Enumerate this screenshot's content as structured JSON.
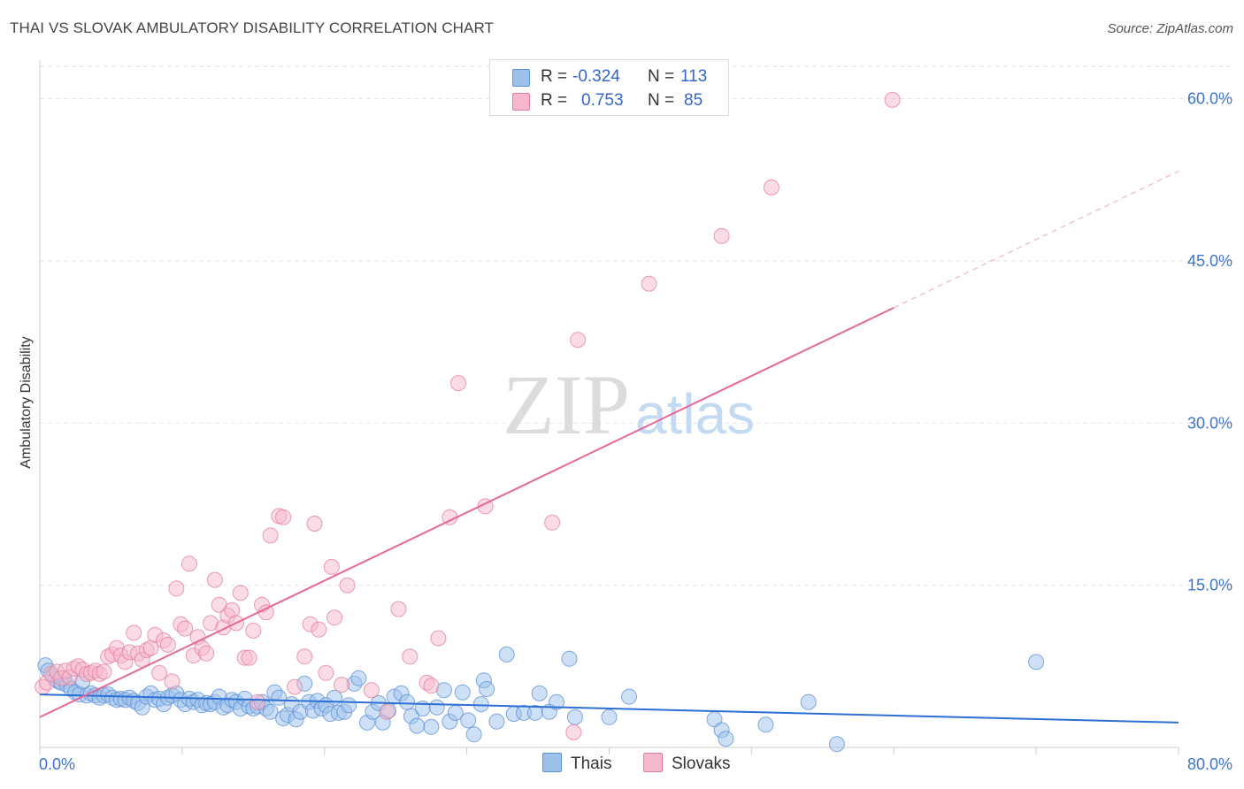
{
  "title": "THAI VS SLOVAK AMBULATORY DISABILITY CORRELATION CHART",
  "source": "Source: ZipAtlas.com",
  "watermark": {
    "zip": "ZIP",
    "atlas": "atlas"
  },
  "legend_top": {
    "rows": [
      {
        "r_label": "R =",
        "r_value": "-0.324",
        "n_label": "N =",
        "n_value": "113",
        "color": "#9ec1ec",
        "edge": "#5b8fd6"
      },
      {
        "r_label": "R =",
        "r_value": "0.753",
        "n_label": "N =",
        "n_value": "85",
        "color": "#f7b8cc",
        "edge": "#e27e9f"
      }
    ]
  },
  "legend_bottom": [
    {
      "label": "Thais",
      "color": "#9ec1ec",
      "edge": "#5b8fd6"
    },
    {
      "label": "Slovaks",
      "color": "#f7b8cc",
      "edge": "#e27e9f"
    }
  ],
  "chart_data": {
    "type": "scatter",
    "title": "THAI VS SLOVAK AMBULATORY DISABILITY CORRELATION CHART",
    "xlabel": "",
    "ylabel": "Ambulatory Disability",
    "xlim": [
      0,
      80
    ],
    "ylim": [
      0,
      63
    ],
    "x_tick_labels": [
      "0.0%",
      "80.0%"
    ],
    "y_ticks": [
      15,
      30,
      45,
      60
    ],
    "y_tick_labels": [
      "15.0%",
      "30.0%",
      "45.0%",
      "60.0%"
    ],
    "grid": true,
    "series": [
      {
        "name": "Thais",
        "color": "#9ec1ec",
        "edge": "#5b8fd6",
        "line_color": "#2d6fd2",
        "trend": {
          "x": [
            0,
            80
          ],
          "y": [
            4.9,
            2.3
          ],
          "dashed_from": null
        },
        "points": [
          [
            0.4,
            7.6
          ],
          [
            0.6,
            7.1
          ],
          [
            0.9,
            6.6
          ],
          [
            1.1,
            6.3
          ],
          [
            1.3,
            6.1
          ],
          [
            1.5,
            6.0
          ],
          [
            1.7,
            6.4
          ],
          [
            1.9,
            5.8
          ],
          [
            2.2,
            5.4
          ],
          [
            2.5,
            5.1
          ],
          [
            2.8,
            4.9
          ],
          [
            3.0,
            6.1
          ],
          [
            3.3,
            4.8
          ],
          [
            3.6,
            5.0
          ],
          [
            3.9,
            4.8
          ],
          [
            4.2,
            4.6
          ],
          [
            4.5,
            4.8
          ],
          [
            4.8,
            4.9
          ],
          [
            5.1,
            4.6
          ],
          [
            5.4,
            4.4
          ],
          [
            5.7,
            4.5
          ],
          [
            6.0,
            4.4
          ],
          [
            6.3,
            4.6
          ],
          [
            6.6,
            4.3
          ],
          [
            6.9,
            4.1
          ],
          [
            7.2,
            3.7
          ],
          [
            7.5,
            4.7
          ],
          [
            7.8,
            5.0
          ],
          [
            8.1,
            4.4
          ],
          [
            8.4,
            4.5
          ],
          [
            8.7,
            4.0
          ],
          [
            9.0,
            4.6
          ],
          [
            9.3,
            4.8
          ],
          [
            9.6,
            5.0
          ],
          [
            9.9,
            4.4
          ],
          [
            10.2,
            4.0
          ],
          [
            10.5,
            4.5
          ],
          [
            10.8,
            4.2
          ],
          [
            11.1,
            4.4
          ],
          [
            11.4,
            3.9
          ],
          [
            11.7,
            4.1
          ],
          [
            12.0,
            4.0
          ],
          [
            12.3,
            4.2
          ],
          [
            12.6,
            4.7
          ],
          [
            12.9,
            3.7
          ],
          [
            13.2,
            3.9
          ],
          [
            13.5,
            4.4
          ],
          [
            13.8,
            4.2
          ],
          [
            14.1,
            3.6
          ],
          [
            14.4,
            4.5
          ],
          [
            14.7,
            3.8
          ],
          [
            15.0,
            3.6
          ],
          [
            15.3,
            3.8
          ],
          [
            15.6,
            4.2
          ],
          [
            15.9,
            3.6
          ],
          [
            16.2,
            3.3
          ],
          [
            16.5,
            5.1
          ],
          [
            16.8,
            4.6
          ],
          [
            17.1,
            2.7
          ],
          [
            17.4,
            3.0
          ],
          [
            17.7,
            4.0
          ],
          [
            18.0,
            2.6
          ],
          [
            18.3,
            3.3
          ],
          [
            18.6,
            5.9
          ],
          [
            18.9,
            4.2
          ],
          [
            19.2,
            3.4
          ],
          [
            19.5,
            4.3
          ],
          [
            19.8,
            3.6
          ],
          [
            20.1,
            3.9
          ],
          [
            20.4,
            3.1
          ],
          [
            20.7,
            4.6
          ],
          [
            21.0,
            3.2
          ],
          [
            21.4,
            3.3
          ],
          [
            21.7,
            3.9
          ],
          [
            22.1,
            5.9
          ],
          [
            22.4,
            6.4
          ],
          [
            23.0,
            2.3
          ],
          [
            23.4,
            3.3
          ],
          [
            23.8,
            4.1
          ],
          [
            24.1,
            2.3
          ],
          [
            24.5,
            3.4
          ],
          [
            24.9,
            4.7
          ],
          [
            25.4,
            5.0
          ],
          [
            25.8,
            4.2
          ],
          [
            26.1,
            2.9
          ],
          [
            26.5,
            2.0
          ],
          [
            26.9,
            3.6
          ],
          [
            27.5,
            1.9
          ],
          [
            27.9,
            3.7
          ],
          [
            28.4,
            5.3
          ],
          [
            28.8,
            2.4
          ],
          [
            29.2,
            3.2
          ],
          [
            29.7,
            5.1
          ],
          [
            30.1,
            2.5
          ],
          [
            30.5,
            1.2
          ],
          [
            31.0,
            4.0
          ],
          [
            31.2,
            6.2
          ],
          [
            31.4,
            5.4
          ],
          [
            32.1,
            2.4
          ],
          [
            32.8,
            8.6
          ],
          [
            33.3,
            3.1
          ],
          [
            34.0,
            3.2
          ],
          [
            34.8,
            3.2
          ],
          [
            35.1,
            5.0
          ],
          [
            35.8,
            3.3
          ],
          [
            36.3,
            4.2
          ],
          [
            37.2,
            8.2
          ],
          [
            37.6,
            2.8
          ],
          [
            40.0,
            2.8
          ],
          [
            41.4,
            4.7
          ],
          [
            47.4,
            2.6
          ],
          [
            47.9,
            1.6
          ],
          [
            48.2,
            0.8
          ],
          [
            51.0,
            2.1
          ],
          [
            54.0,
            4.2
          ],
          [
            56.0,
            0.3
          ],
          [
            70.0,
            7.9
          ]
        ]
      },
      {
        "name": "Slovaks",
        "color": "#f7b8cc",
        "edge": "#e27e9f",
        "line_color": "#e6679a",
        "trend": {
          "x": [
            0,
            80
          ],
          "y": [
            2.8,
            53.3
          ],
          "dashed_from": 60
        },
        "points": [
          [
            0.2,
            5.6
          ],
          [
            0.5,
            6.0
          ],
          [
            0.8,
            6.8
          ],
          [
            1.2,
            7.0
          ],
          [
            1.5,
            6.4
          ],
          [
            1.8,
            7.1
          ],
          [
            2.1,
            6.5
          ],
          [
            2.4,
            7.3
          ],
          [
            2.7,
            7.5
          ],
          [
            3.0,
            7.2
          ],
          [
            3.3,
            6.8
          ],
          [
            3.6,
            6.9
          ],
          [
            3.9,
            7.1
          ],
          [
            4.2,
            6.8
          ],
          [
            4.5,
            7.0
          ],
          [
            4.8,
            8.4
          ],
          [
            5.1,
            8.6
          ],
          [
            5.4,
            9.2
          ],
          [
            5.7,
            8.5
          ],
          [
            6.0,
            7.9
          ],
          [
            6.3,
            8.8
          ],
          [
            6.6,
            10.6
          ],
          [
            6.9,
            8.7
          ],
          [
            7.2,
            8.1
          ],
          [
            7.5,
            9.0
          ],
          [
            7.8,
            9.2
          ],
          [
            8.1,
            10.4
          ],
          [
            8.4,
            6.9
          ],
          [
            8.7,
            9.9
          ],
          [
            9.0,
            9.5
          ],
          [
            9.3,
            6.1
          ],
          [
            9.6,
            14.7
          ],
          [
            9.9,
            11.4
          ],
          [
            10.2,
            11.0
          ],
          [
            10.5,
            17.0
          ],
          [
            10.8,
            8.5
          ],
          [
            11.1,
            10.2
          ],
          [
            11.4,
            9.2
          ],
          [
            11.7,
            8.7
          ],
          [
            12.0,
            11.5
          ],
          [
            12.3,
            15.5
          ],
          [
            12.6,
            13.2
          ],
          [
            12.9,
            11.1
          ],
          [
            13.2,
            12.2
          ],
          [
            13.5,
            12.7
          ],
          [
            13.8,
            11.5
          ],
          [
            14.1,
            14.3
          ],
          [
            14.4,
            8.3
          ],
          [
            14.7,
            8.3
          ],
          [
            15.0,
            10.8
          ],
          [
            15.3,
            4.2
          ],
          [
            15.6,
            13.2
          ],
          [
            15.9,
            12.5
          ],
          [
            16.2,
            19.6
          ],
          [
            16.8,
            21.4
          ],
          [
            17.1,
            21.3
          ],
          [
            17.9,
            5.6
          ],
          [
            18.6,
            8.4
          ],
          [
            19.0,
            11.4
          ],
          [
            19.3,
            20.7
          ],
          [
            19.6,
            10.9
          ],
          [
            20.1,
            6.9
          ],
          [
            20.5,
            16.7
          ],
          [
            20.7,
            12.0
          ],
          [
            21.2,
            5.8
          ],
          [
            21.6,
            15.0
          ],
          [
            23.3,
            5.3
          ],
          [
            24.4,
            3.3
          ],
          [
            25.2,
            12.8
          ],
          [
            26.0,
            8.4
          ],
          [
            27.2,
            6.0
          ],
          [
            27.5,
            5.7
          ],
          [
            28.0,
            10.1
          ],
          [
            28.8,
            21.3
          ],
          [
            29.4,
            33.7
          ],
          [
            31.3,
            22.3
          ],
          [
            36.0,
            20.8
          ],
          [
            37.5,
            1.4
          ],
          [
            37.8,
            37.7
          ],
          [
            42.8,
            42.9
          ],
          [
            47.9,
            47.3
          ],
          [
            51.4,
            51.8
          ],
          [
            59.9,
            59.9
          ]
        ]
      }
    ]
  }
}
